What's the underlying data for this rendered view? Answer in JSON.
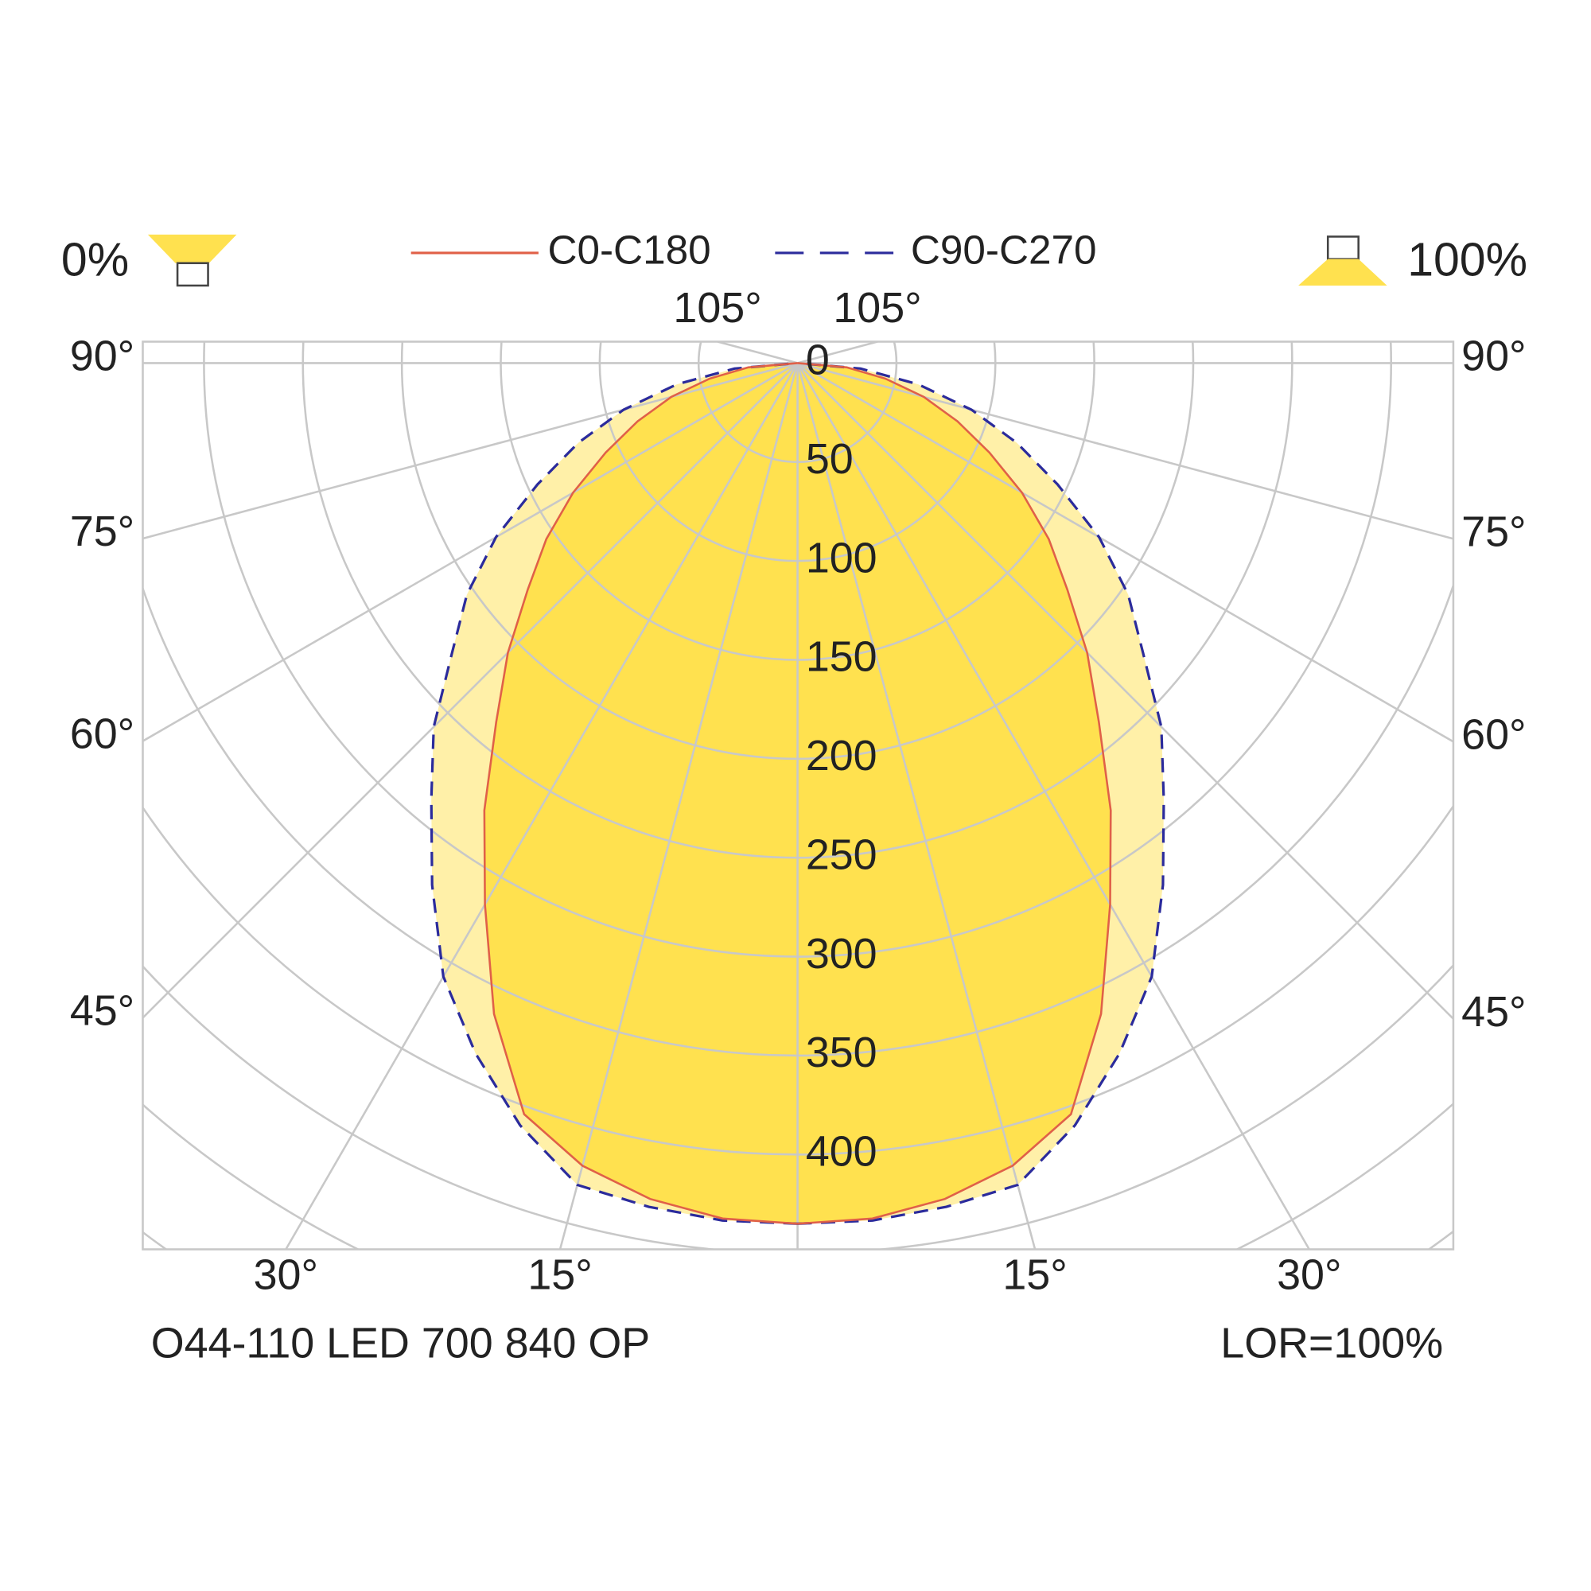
{
  "chart_data": {
    "type": "polar",
    "upward_label": "0%",
    "downward_label": "100%",
    "product": "O44-110 LED 700 840 OP",
    "lor": "LOR=100%",
    "angles": [
      0,
      5,
      10,
      15,
      20,
      25,
      30,
      35,
      40,
      45,
      50,
      55,
      60,
      65,
      70,
      75,
      80,
      85,
      90
    ],
    "series": [
      {
        "name": "C90-C270",
        "color": "#2b2b9c",
        "fill": "#fff0a8",
        "dashed": true,
        "values": [
          435,
          435,
          433,
          430,
          410,
          385,
          358,
          322,
          288,
          260,
          228,
          204,
          176,
          145,
          118,
          91,
          62,
          32,
          0
        ]
      },
      {
        "name": "C0-C180",
        "color": "#e06048",
        "fill": "#ffe14f",
        "dashed": false,
        "values": [
          435,
          434,
          429,
          420,
          404,
          363,
          316,
          276,
          237,
          207,
          178,
          155,
          131,
          107,
          86,
          66,
          45,
          25,
          0
        ]
      }
    ],
    "rlim": [
      0,
      450
    ],
    "rticks": [
      0,
      50,
      100,
      150,
      200,
      250,
      300,
      350,
      400
    ],
    "angle_ticks": [
      {
        "value": 15,
        "label": "15°"
      },
      {
        "value": 30,
        "label": "30°"
      },
      {
        "value": 45,
        "label": "45°"
      },
      {
        "value": 60,
        "label": "60°"
      },
      {
        "value": 75,
        "label": "75°"
      },
      {
        "value": 90,
        "label": "90°"
      },
      {
        "value": 105,
        "label": "105°"
      }
    ],
    "grid": true
  }
}
